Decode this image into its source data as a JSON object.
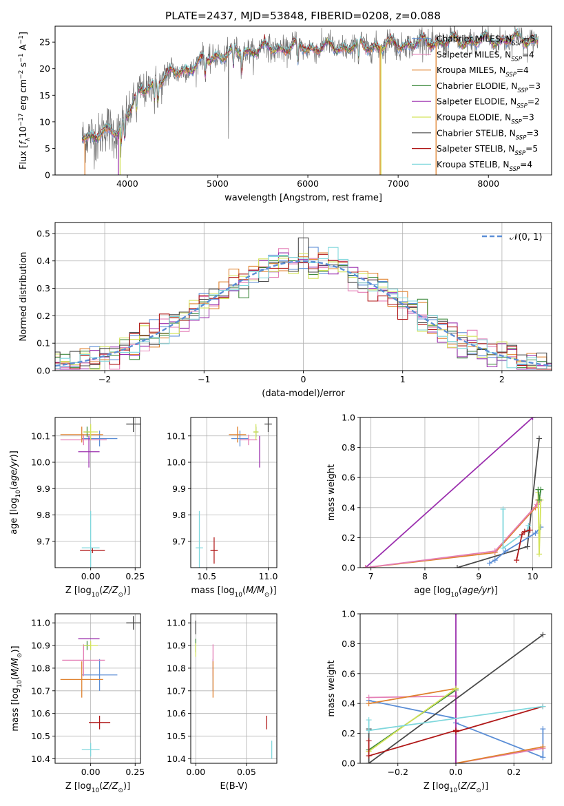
{
  "figure": {
    "title": "PLATE=2437, MJD=53848, FIBERID=0208, z=0.088"
  },
  "palette": {
    "Chabrier MILES": "#5b8ed6",
    "Salpeter MILES": "#e47fb6",
    "Kroupa MILES": "#e0822f",
    "Chabrier ELODIE": "#3f8a3f",
    "Salpeter ELODIE": "#9b2fae",
    "Kroupa ELODIE": "#d3e35a",
    "Chabrier STELIB": "#4a4a4a",
    "Salpeter STELIB": "#b01818",
    "Kroupa STELIB": "#7fd7dc"
  },
  "chart_data": [
    {
      "id": "spectrum",
      "type": "line",
      "xlabel": "wavelength [Angstrom, rest frame]",
      "ylabel": "Flux [f_λ 10^-17 erg cm^-2 s^-1 A^-1]",
      "xlim": [
        3200,
        8700
      ],
      "ylim": [
        0,
        28
      ],
      "xticks": [
        4000,
        5000,
        6000,
        7000,
        8000
      ],
      "yticks": [
        0,
        5,
        10,
        15,
        20,
        25
      ],
      "grid": false,
      "legend_position": "top-right",
      "observed_continuum": {
        "x": [
          3500,
          3700,
          3900,
          4000,
          4100,
          4300,
          4500,
          4800,
          5000,
          5200,
          5500,
          5800,
          6000,
          6300,
          6600,
          7000,
          7400,
          7800,
          8200,
          8550
        ],
        "y": [
          7,
          8,
          8,
          12,
          14.5,
          17.5,
          19,
          21,
          22.5,
          23,
          23.8,
          24,
          24,
          24,
          24.2,
          24.5,
          25,
          25.2,
          25.5,
          25.5
        ]
      },
      "model_dropouts": [
        {
          "series": "Kroupa MILES",
          "x": 3530
        },
        {
          "series": "Salpeter ELODIE",
          "x": 3900
        },
        {
          "series": "Kroupa ELODIE",
          "x": 3920
        },
        {
          "series": "Kroupa MILES",
          "x": 6800
        },
        {
          "series": "Kroupa ELODIE",
          "x": 6810
        },
        {
          "series": "Kroupa MILES",
          "x": 7420
        }
      ],
      "legend": [
        {
          "series": "Chabrier MILES",
          "label": "Chabrier MILES, N",
          "sub": "SSP",
          "suffix": "=5"
        },
        {
          "series": "Salpeter MILES",
          "label": "Salpeter MILES, N",
          "sub": "SSP",
          "suffix": "=4"
        },
        {
          "series": "Kroupa MILES",
          "label": "Kroupa MILES, N",
          "sub": "SSP",
          "suffix": "=4"
        },
        {
          "series": "Chabrier ELODIE",
          "label": "Chabrier ELODIE, N",
          "sub": "SSP",
          "suffix": "=3"
        },
        {
          "series": "Salpeter ELODIE",
          "label": "Salpeter ELODIE, N",
          "sub": "SSP",
          "suffix": "=2"
        },
        {
          "series": "Kroupa ELODIE",
          "label": "Kroupa ELODIE, N",
          "sub": "SSP",
          "suffix": "=3"
        },
        {
          "series": "Chabrier STELIB",
          "label": "Chabrier STELIB, N",
          "sub": "SSP",
          "suffix": "=3"
        },
        {
          "series": "Salpeter STELIB",
          "label": "Salpeter STELIB, N",
          "sub": "SSP",
          "suffix": "=5"
        },
        {
          "series": "Kroupa STELIB",
          "label": "Kroupa STELIB, N",
          "sub": "SSP",
          "suffix": "=4"
        }
      ]
    },
    {
      "id": "residuals",
      "type": "histogram",
      "xlabel": "(data-model)/error",
      "ylabel": "Normed distribution",
      "xlim": [
        -2.5,
        2.5
      ],
      "ylim": [
        0,
        0.54
      ],
      "xticks": [
        -2,
        -1,
        0,
        1,
        2
      ],
      "yticks": [
        0.0,
        0.1,
        0.2,
        0.3,
        0.4,
        0.5
      ],
      "bin_width": 0.1,
      "grid": true,
      "legend": [
        {
          "label": "𝒩(0, 1)",
          "style": "dashed"
        }
      ],
      "legend_position": "top-right"
    },
    {
      "id": "z-age",
      "type": "errorbar",
      "xlabel": "Z [log10(Z/Z⊙)]",
      "ylabel": "age [log10(age/yr)]",
      "xlim": [
        -0.2,
        0.28
      ],
      "ylim": [
        9.6,
        10.17
      ],
      "xticks": [
        0.0,
        0.25
      ],
      "yticks": [
        9.7,
        9.8,
        9.9,
        10.0,
        10.1
      ],
      "grid": true,
      "points": [
        {
          "series": "Chabrier MILES",
          "x": 0.05,
          "y": 10.09,
          "xerr": 0.1,
          "yerr": 0.03
        },
        {
          "series": "Salpeter MILES",
          "x": -0.04,
          "y": 10.085,
          "xerr": 0.13,
          "yerr": 0.02
        },
        {
          "series": "Kroupa MILES",
          "x": -0.05,
          "y": 10.105,
          "xerr": 0.12,
          "yerr": 0.03
        },
        {
          "series": "Chabrier ELODIE",
          "x": -0.02,
          "y": 10.115,
          "xerr": 0.02,
          "yerr": 0.02
        },
        {
          "series": "Salpeter ELODIE",
          "x": -0.01,
          "y": 10.04,
          "xerr": 0.06,
          "yerr": 0.06
        },
        {
          "series": "Kroupa ELODIE",
          "x": 0.0,
          "y": 10.115,
          "xerr": 0.04,
          "yerr": 0.03
        },
        {
          "series": "Chabrier STELIB",
          "x": 0.24,
          "y": 10.145,
          "xerr": 0.04,
          "yerr": 0.03
        },
        {
          "series": "Salpeter STELIB",
          "x": 0.01,
          "y": 9.665,
          "xerr": 0.07,
          "yerr": 0.01
        },
        {
          "series": "Kroupa STELIB",
          "x": 0.0,
          "y": 9.675,
          "xerr": 0.05,
          "yerr": 0.14
        }
      ]
    },
    {
      "id": "mass-age",
      "type": "errorbar",
      "xlabel": "mass [log10(M/M⊙)]",
      "ylabel": "",
      "xlim": [
        10.37,
        11.07
      ],
      "ylim": [
        9.6,
        10.17
      ],
      "xticks": [
        10.5,
        11.0
      ],
      "yticks": [
        9.7,
        9.8,
        9.9,
        10.0,
        10.1
      ],
      "grid": true,
      "points": [
        {
          "series": "Chabrier MILES",
          "x": 10.77,
          "y": 10.09,
          "xerr": 0.07,
          "yerr": 0.03
        },
        {
          "series": "Salpeter MILES",
          "x": 10.84,
          "y": 10.085,
          "xerr": 0.07,
          "yerr": 0.02
        },
        {
          "series": "Kroupa MILES",
          "x": 10.75,
          "y": 10.105,
          "xerr": 0.07,
          "yerr": 0.03
        },
        {
          "series": "Chabrier ELODIE",
          "x": 10.9,
          "y": 10.115,
          "xerr": 0.02,
          "yerr": 0.02
        },
        {
          "series": "Salpeter ELODIE",
          "x": 10.93,
          "y": 10.04,
          "xerr": 0.0,
          "yerr": 0.06
        },
        {
          "series": "Kroupa ELODIE",
          "x": 10.9,
          "y": 10.115,
          "xerr": 0.02,
          "yerr": 0.03
        },
        {
          "series": "Chabrier STELIB",
          "x": 11.0,
          "y": 10.145,
          "xerr": 0.03,
          "yerr": 0.03
        },
        {
          "series": "Salpeter STELIB",
          "x": 10.56,
          "y": 9.665,
          "xerr": 0.03,
          "yerr": 0.05
        },
        {
          "series": "Kroupa STELIB",
          "x": 10.44,
          "y": 9.675,
          "xerr": 0.03,
          "yerr": 0.14
        }
      ]
    },
    {
      "id": "age-weight",
      "type": "line",
      "xlabel": "age [log10(age/yr)]",
      "ylabel": "mass weight",
      "xlim": [
        6.8,
        10.35
      ],
      "ylim": [
        0,
        1.0
      ],
      "xticks": [
        7,
        8,
        9,
        10
      ],
      "yticks": [
        0.0,
        0.2,
        0.4,
        0.6,
        0.8,
        1.0
      ],
      "grid": true,
      "series": [
        {
          "series": "Salpeter ELODIE",
          "x": [
            6.9,
            10.0
          ],
          "y": [
            0.0,
            1.0
          ]
        },
        {
          "series": "Chabrier STELIB",
          "x": [
            8.6,
            9.9,
            10.12
          ],
          "y": [
            0.0,
            0.14,
            0.86
          ]
        },
        {
          "series": "Kroupa MILES",
          "x": [
            6.9,
            9.3,
            10.05,
            10.1
          ],
          "y": [
            0.0,
            0.1,
            0.4,
            0.45
          ]
        },
        {
          "series": "Salpeter MILES",
          "x": [
            6.9,
            9.3,
            10.08,
            10.12
          ],
          "y": [
            0.0,
            0.11,
            0.42,
            0.44
          ]
        },
        {
          "series": "Chabrier MILES",
          "x": [
            9.2,
            9.3,
            9.5,
            10.05,
            10.15
          ],
          "y": [
            0.03,
            0.05,
            0.11,
            0.23,
            0.27
          ]
        },
        {
          "series": "Kroupa STELIB",
          "x": [
            9.45,
            9.45,
            9.9,
            9.92
          ],
          "y": [
            0.39,
            0.13,
            0.25,
            0.28
          ]
        },
        {
          "series": "Salpeter STELIB",
          "x": [
            9.7,
            9.8,
            9.85,
            9.95
          ],
          "y": [
            0.05,
            0.22,
            0.24,
            0.25
          ]
        },
        {
          "series": "Kroupa ELODIE",
          "x": [
            10.1,
            10.12,
            10.15
          ],
          "y": [
            0.5,
            0.09,
            0.45
          ]
        },
        {
          "series": "Chabrier ELODIE",
          "x": [
            10.1,
            10.12,
            10.15
          ],
          "y": [
            0.52,
            0.45,
            0.52
          ]
        }
      ]
    },
    {
      "id": "z-mass",
      "type": "errorbar",
      "xlabel": "Z [log10(Z/Z⊙)]",
      "ylabel": "mass [log10(M/M⊙)]",
      "xlim": [
        -0.2,
        0.28
      ],
      "ylim": [
        10.38,
        11.04
      ],
      "xticks": [
        0.0,
        0.25
      ],
      "yticks": [
        10.4,
        10.5,
        10.6,
        10.7,
        10.8,
        10.9,
        11.0
      ],
      "grid": true,
      "points": [
        {
          "series": "Chabrier MILES",
          "x": 0.05,
          "y": 10.77,
          "xerr": 0.1,
          "yerr": 0.07
        },
        {
          "series": "Salpeter MILES",
          "x": -0.04,
          "y": 10.835,
          "xerr": 0.12,
          "yerr": 0.07
        },
        {
          "series": "Kroupa MILES",
          "x": -0.05,
          "y": 10.75,
          "xerr": 0.12,
          "yerr": 0.08
        },
        {
          "series": "Chabrier ELODIE",
          "x": -0.02,
          "y": 10.9,
          "xerr": 0.02,
          "yerr": 0.02
        },
        {
          "series": "Salpeter ELODIE",
          "x": -0.01,
          "y": 10.93,
          "xerr": 0.06,
          "yerr": 0.0
        },
        {
          "series": "Kroupa ELODIE",
          "x": 0.0,
          "y": 10.9,
          "xerr": 0.04,
          "yerr": 0.02
        },
        {
          "series": "Chabrier STELIB",
          "x": 0.24,
          "y": 11.0,
          "xerr": 0.04,
          "yerr": 0.03
        },
        {
          "series": "Salpeter STELIB",
          "x": 0.05,
          "y": 10.56,
          "xerr": 0.06,
          "yerr": 0.03
        },
        {
          "series": "Kroupa STELIB",
          "x": 0.0,
          "y": 10.44,
          "xerr": 0.05,
          "yerr": 0.03
        }
      ]
    },
    {
      "id": "ebv-mass",
      "type": "errorbar",
      "xlabel": "E(B-V)",
      "ylabel": "",
      "xlim": [
        -0.005,
        0.08
      ],
      "ylim": [
        10.38,
        11.04
      ],
      "xticks": [
        0.0,
        0.05
      ],
      "yticks": [
        10.4,
        10.5,
        10.6,
        10.7,
        10.8,
        10.9,
        11.0
      ],
      "grid": true,
      "points": [
        {
          "series": "Chabrier MILES",
          "x": 0.017,
          "y": 10.77,
          "xerr": 0,
          "yerr": 0.07
        },
        {
          "series": "Salpeter MILES",
          "x": 0.017,
          "y": 10.835,
          "xerr": 0,
          "yerr": 0.07
        },
        {
          "series": "Kroupa MILES",
          "x": 0.017,
          "y": 10.75,
          "xerr": 0,
          "yerr": 0.08
        },
        {
          "series": "Chabrier ELODIE",
          "x": 0.0,
          "y": 10.9,
          "xerr": 0,
          "yerr": 0.03
        },
        {
          "series": "Salpeter ELODIE",
          "x": 0.0,
          "y": 10.93,
          "xerr": 0,
          "yerr": 0.0
        },
        {
          "series": "Kroupa ELODIE",
          "x": 0.0,
          "y": 10.88,
          "xerr": 0,
          "yerr": 0.03
        },
        {
          "series": "Chabrier STELIB",
          "x": 0.0,
          "y": 10.98,
          "xerr": 0,
          "yerr": 0.03
        },
        {
          "series": "Salpeter STELIB",
          "x": 0.07,
          "y": 10.56,
          "xerr": 0,
          "yerr": 0.03
        },
        {
          "series": "Kroupa STELIB",
          "x": 0.075,
          "y": 10.44,
          "xerr": 0,
          "yerr": 0.04
        }
      ]
    },
    {
      "id": "z-weight",
      "type": "line",
      "xlabel": "Z [log10(Z/Z⊙)]",
      "ylabel": "mass weight",
      "xlim": [
        -0.33,
        0.33
      ],
      "ylim": [
        0,
        1.0
      ],
      "xticks": [
        -0.2,
        0.0,
        0.2
      ],
      "yticks": [
        0.0,
        0.2,
        0.4,
        0.6,
        0.8,
        1.0
      ],
      "grid": true,
      "series": [
        {
          "series": "Chabrier MILES",
          "x": [
            -0.3,
            0.0,
            0.0,
            0.3,
            0.3
          ],
          "y": [
            0.42,
            0.3,
            0.27,
            0.04,
            0.23
          ]
        },
        {
          "series": "Salpeter MILES",
          "x": [
            -0.3,
            0.0,
            0.0,
            0.3
          ],
          "y": [
            0.44,
            0.45,
            0.0,
            0.1
          ]
        },
        {
          "series": "Kroupa MILES",
          "x": [
            -0.3,
            0.0,
            0.0,
            0.3
          ],
          "y": [
            0.4,
            0.5,
            0.0,
            0.11
          ]
        },
        {
          "series": "Chabrier ELODIE",
          "x": [
            -0.3,
            0.0
          ],
          "y": [
            0.09,
            0.49
          ]
        },
        {
          "series": "Salpeter ELODIE",
          "x": [
            0.0,
            0.0
          ],
          "y": [
            0.0,
            1.0
          ]
        },
        {
          "series": "Kroupa ELODIE",
          "x": [
            -0.3,
            0.0
          ],
          "y": [
            0.08,
            0.5
          ]
        },
        {
          "series": "Chabrier STELIB",
          "x": [
            -0.3,
            -0.3,
            0.3
          ],
          "y": [
            0.23,
            0.0,
            0.86
          ]
        },
        {
          "series": "Salpeter STELIB",
          "x": [
            -0.3,
            -0.3,
            0.0,
            0.0,
            0.3
          ],
          "y": [
            0.15,
            0.05,
            0.22,
            0.21,
            0.38
          ]
        },
        {
          "series": "Kroupa STELIB",
          "x": [
            -0.3,
            -0.3,
            0.3
          ],
          "y": [
            0.29,
            0.22,
            0.38
          ]
        }
      ]
    }
  ]
}
